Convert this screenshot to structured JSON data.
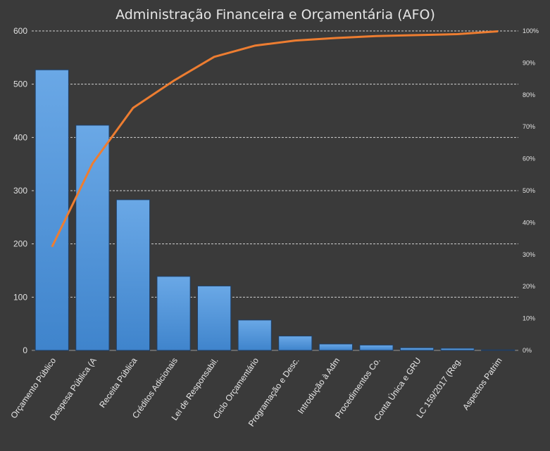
{
  "chart_data": {
    "type": "bar",
    "title": "Administração Financeira e Orçamentária (AFO)",
    "categories": [
      "Orçamento Público",
      "Despesa Pública (A",
      "Receita Pública",
      "Créditos Adicionais",
      "Lei de Responsabil.",
      "Ciclo Orçamentário",
      "Programação e Desc.",
      "Introdução à Adm",
      "Procedimentos  Co.",
      "Conta Única e GRU",
      "LC 159/2017 (Reg.",
      "Aspectos Patrim"
    ],
    "series": [
      {
        "type": "bar",
        "axis": "left",
        "color": "#5b9bd5",
        "values": [
          527,
          423,
          283,
          139,
          121,
          57,
          27,
          12,
          10,
          5,
          4,
          1
        ]
      },
      {
        "type": "line",
        "axis": "right",
        "color": "#ed7d31",
        "values": [
          32.4,
          58.5,
          75.9,
          84.4,
          91.9,
          95.4,
          97.0,
          97.8,
          98.4,
          98.7,
          99.0,
          99.9
        ]
      }
    ],
    "ylim": [
      0,
      600
    ],
    "y_ticks": [
      "0",
      "100",
      "200",
      "300",
      "400",
      "500",
      "600"
    ],
    "y2lim": [
      0,
      100
    ],
    "y2_ticks": [
      "0%",
      "10%",
      "20%",
      "30%",
      "40%",
      "50%",
      "60%",
      "70%",
      "80%",
      "90%",
      "100%"
    ],
    "grid": true,
    "legend": "none"
  }
}
